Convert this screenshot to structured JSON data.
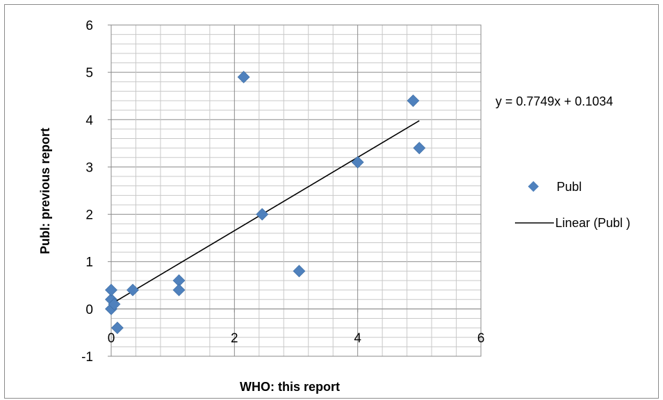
{
  "chart_data": {
    "type": "scatter",
    "xlabel": "WHO: this report",
    "ylabel": "Publ: previous report",
    "xlim": [
      0,
      6
    ],
    "ylim": [
      -1,
      6
    ],
    "x_ticks": [
      "0",
      "2",
      "4",
      "6"
    ],
    "y_ticks": [
      "-1",
      "0",
      "1",
      "2",
      "3",
      "4",
      "5",
      "6"
    ],
    "grid": true,
    "legend_position": "right",
    "series": [
      {
        "name": "Publ",
        "color": "#4F81BD",
        "marker": "diamond",
        "points": [
          {
            "x": 0.0,
            "y": 0.0
          },
          {
            "x": 0.0,
            "y": 0.2
          },
          {
            "x": 0.0,
            "y": 0.4
          },
          {
            "x": 0.05,
            "y": 0.1
          },
          {
            "x": 0.1,
            "y": -0.4
          },
          {
            "x": 0.35,
            "y": 0.4
          },
          {
            "x": 1.1,
            "y": 0.6
          },
          {
            "x": 1.1,
            "y": 0.4
          },
          {
            "x": 2.15,
            "y": 4.9
          },
          {
            "x": 2.45,
            "y": 2.0
          },
          {
            "x": 3.05,
            "y": 0.8
          },
          {
            "x": 4.0,
            "y": 3.1
          },
          {
            "x": 4.9,
            "y": 4.4
          },
          {
            "x": 5.0,
            "y": 3.4
          }
        ]
      }
    ],
    "trendline": {
      "name": "Linear (Publ )",
      "type": "linear",
      "slope": 0.7749,
      "intercept": 0.1034,
      "x_range": [
        0,
        5.0
      ],
      "color": "#000000",
      "equation": "y = 0.7749x + 0.1034"
    }
  }
}
